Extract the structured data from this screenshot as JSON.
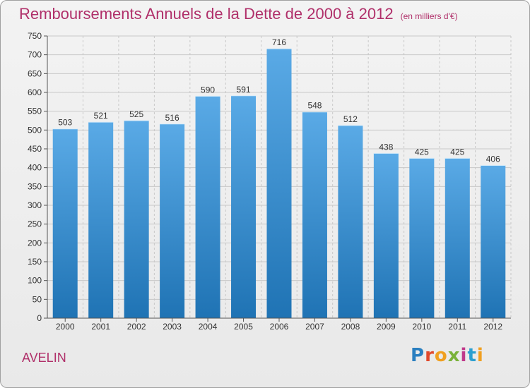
{
  "header": {
    "title": "Remboursements Annuels de la Dette de 2000 à 2012",
    "subtitle": "(en milliers d'€)"
  },
  "footer": {
    "commune": "AVELIN",
    "logo_text": "Proxiti"
  },
  "colors": {
    "title": "#b0306a",
    "bar_top": "#5aaae6",
    "bar_bottom": "#1f73b4",
    "grid": "#c8c8c8"
  },
  "chart_data": {
    "type": "bar",
    "title": "Remboursements Annuels de la Dette de 2000 à 2012",
    "subtitle": "(en milliers d'€)",
    "categories": [
      "2000",
      "2001",
      "2002",
      "2003",
      "2004",
      "2005",
      "2006",
      "2007",
      "2008",
      "2009",
      "2010",
      "2011",
      "2012"
    ],
    "values": [
      503,
      521,
      525,
      516,
      590,
      591,
      716,
      548,
      512,
      438,
      425,
      425,
      406
    ],
    "ylim": [
      0,
      750
    ],
    "ytick_step": 50,
    "xlabel": "",
    "ylabel": "",
    "grid": true,
    "data_labels": true
  }
}
